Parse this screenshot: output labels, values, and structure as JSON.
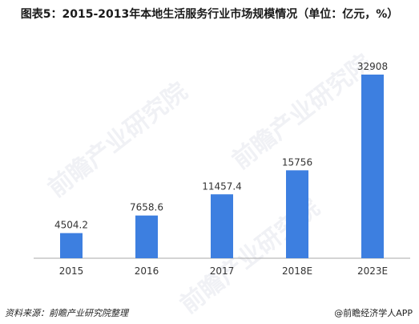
{
  "title": "图表5：2015-2013年本地生活服务行业市场规模情况（单位：亿元，%）",
  "watermark": "前瞻产业研究院",
  "footer": {
    "source": "资料来源：前瞻产业研究院整理",
    "brand": "@前瞻经济学人APP"
  },
  "colors": {
    "bar": "#3d7fe0",
    "axis": "#a8a8a8",
    "text": "#333333"
  },
  "chart_data": {
    "type": "bar",
    "categories": [
      "2015",
      "2016",
      "2017",
      "2018E",
      "2023E"
    ],
    "values": [
      4504.2,
      7658.6,
      11457.4,
      15756,
      32908
    ],
    "value_labels": [
      "4504.2",
      "7658.6",
      "11457.4",
      "15756",
      "32908"
    ],
    "title": "图表5：2015-2013年本地生活服务行业市场规模情况（单位：亿元，%）",
    "xlabel": "",
    "ylabel": "",
    "ylim": [
      0,
      32908
    ],
    "grid": false
  }
}
